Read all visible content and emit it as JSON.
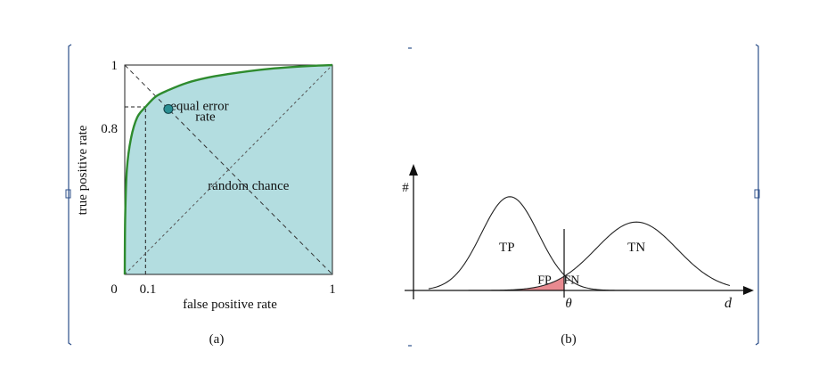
{
  "figure": {
    "panel_a_caption": "(a)",
    "panel_b_caption": "(b)"
  },
  "chart_data": [
    {
      "type": "line",
      "panel": "a",
      "xlabel": "false positive rate",
      "ylabel": "true positive rate",
      "xlim": [
        0,
        1
      ],
      "ylim": [
        0,
        1
      ],
      "x_tick_labels": [
        "0",
        "0.1",
        "1"
      ],
      "y_tick_labels": [
        "0.8",
        "1"
      ],
      "grid": false,
      "series": [
        {
          "name": "",
          "x": [
            0,
            0.002,
            0.01,
            0.03,
            0.06,
            0.1,
            0.15,
            0.21,
            0.3,
            0.4,
            0.5,
            0.6,
            0.7,
            0.8,
            0.9,
            1.0
          ],
          "y": [
            0,
            0.27,
            0.5,
            0.65,
            0.75,
            0.8,
            0.85,
            0.88,
            0.915,
            0.94,
            0.957,
            0.971,
            0.982,
            0.99,
            0.996,
            1.0
          ],
          "color": "#2e8b2e"
        },
        {
          "name": "",
          "x": [
            0,
            1
          ],
          "y": [
            0,
            1
          ],
          "style": "dashed",
          "color": "#555555"
        },
        {
          "name": "",
          "x": [
            0,
            1
          ],
          "y": [
            1,
            0
          ],
          "style": "dashed",
          "color": "#333333"
        }
      ],
      "fill_under_curve_color": "#b3dde0",
      "marker": {
        "x": 0.21,
        "y": 0.79,
        "color": "#2a8f93"
      },
      "guides": [
        {
          "x": [
            0,
            0.1
          ],
          "y": [
            0.8,
            0.8
          ]
        },
        {
          "x": [
            0.1,
            0.1
          ],
          "y": [
            0,
            0.8
          ]
        }
      ],
      "annotations": [
        {
          "text": "equal error",
          "x": 0.22,
          "y": 0.785
        },
        {
          "text": "rate",
          "x": 0.34,
          "y": 0.735
        },
        {
          "text": "random chance",
          "x": 0.4,
          "y": 0.405
        }
      ]
    },
    {
      "type": "area",
      "panel": "b",
      "xlabel": "d",
      "ylabel": "#",
      "threshold_label": "θ",
      "threshold_x": 0.45,
      "xlim": [
        -0.05,
        1.08
      ],
      "ylim": [
        0,
        1.35
      ],
      "grid": false,
      "series": [
        {
          "name": "TP",
          "label": "TP",
          "label_x": 0.26,
          "label_y": 0.42,
          "mean": 0.27,
          "sd": 0.095,
          "amp": 1.0
        },
        {
          "name": "TN",
          "label": "TN",
          "label_x": 0.69,
          "label_y": 0.42,
          "mean": 0.69,
          "sd": 0.135,
          "amp": 0.73
        }
      ],
      "overlap_labels": [
        {
          "text": "FP",
          "x": 0.385,
          "y": 0.07
        },
        {
          "text": "FN",
          "x": 0.475,
          "y": 0.07
        }
      ],
      "fp_fill_color": "#e88a90",
      "curve_color": "#222222"
    }
  ]
}
